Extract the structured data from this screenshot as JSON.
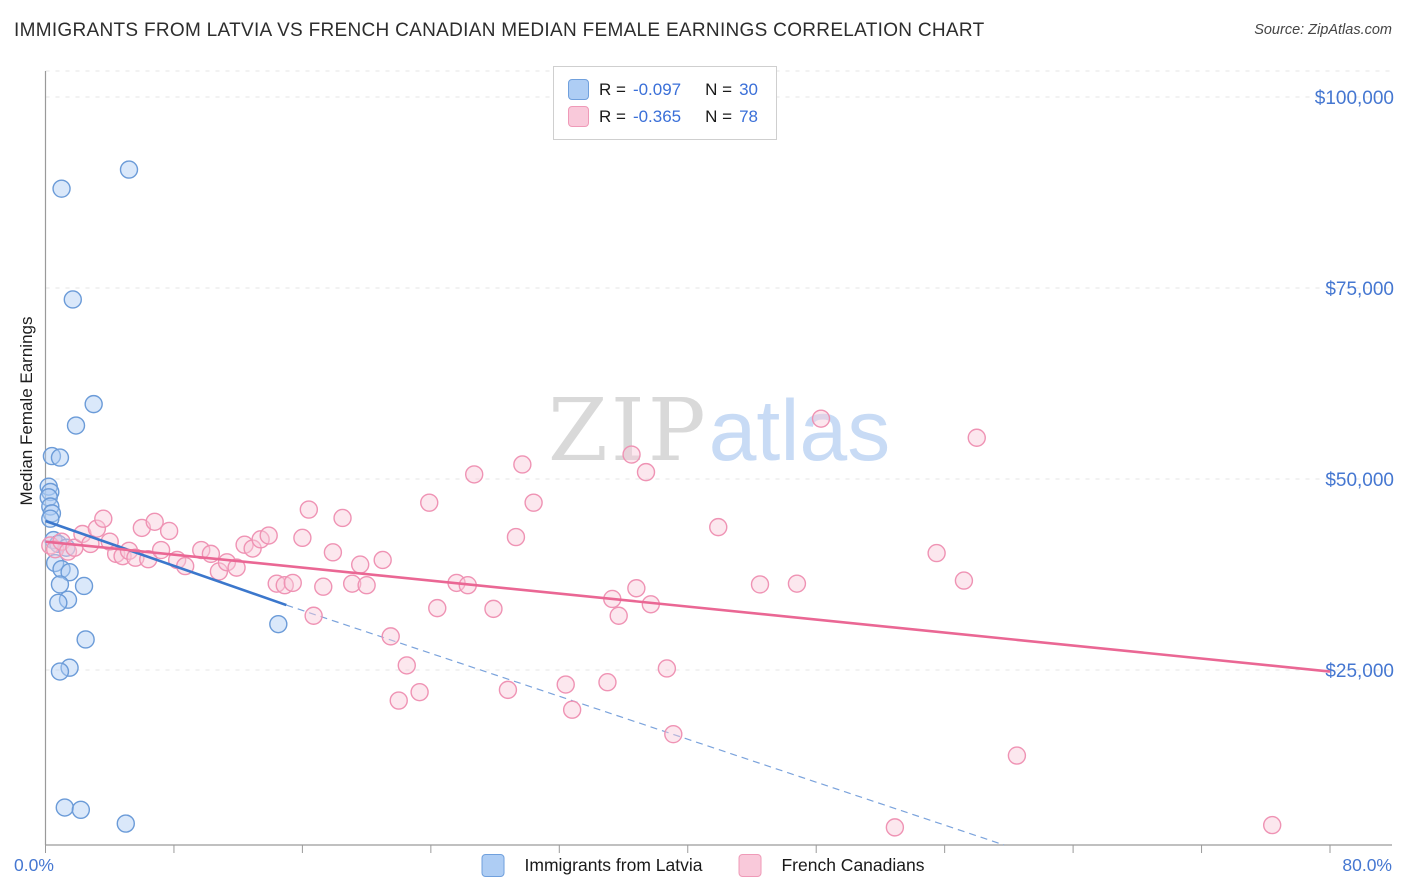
{
  "chart_data": {
    "type": "scatter",
    "title": "IMMIGRANTS FROM LATVIA VS FRENCH CANADIAN MEDIAN FEMALE EARNINGS CORRELATION CHART",
    "source": "Source: ZipAtlas.com",
    "ylabel": "Median Female Earnings",
    "watermark": {
      "zip": "ZIP",
      "atlas": "atlas"
    },
    "x_axis": {
      "min": 0,
      "max": 80,
      "tick_step": 8,
      "left_label": "0.0%",
      "right_label": "80.0%"
    },
    "y_axis": {
      "min": 0,
      "max": 103500,
      "gridlines": [
        25000,
        50000,
        75000,
        100000
      ],
      "ticks": [
        {
          "value": 100000,
          "label": "$100,000"
        },
        {
          "value": 75000,
          "label": "$75,000"
        },
        {
          "value": 50000,
          "label": "$50,000"
        },
        {
          "value": 25000,
          "label": "$25,000"
        }
      ]
    },
    "legend_box": [
      {
        "r_label": "R =",
        "r_value": "-0.097",
        "n_label": "N =",
        "n_value": "30"
      },
      {
        "r_label": "R =",
        "r_value": "-0.365",
        "n_label": "N =",
        "n_value": "78"
      }
    ],
    "colors": {
      "grid": "#e4e4e4",
      "axis": "#9a9a9a",
      "tick_text": "#4577d1",
      "blue_fill": "#aecdf4",
      "blue_stroke": "#6b9bd8",
      "blue_line": "#3b77cc",
      "blue_dash": "#7ba3dc",
      "pink_fill": "#f9c9da",
      "pink_stroke": "#ef93b4",
      "pink_line": "#ea6794"
    },
    "series": [
      {
        "name": "Immigrants from Latvia",
        "r": -0.097,
        "n": 30,
        "points": [
          [
            1.0,
            88000
          ],
          [
            5.2,
            90500
          ],
          [
            1.7,
            73500
          ],
          [
            3.0,
            59800
          ],
          [
            1.9,
            57000
          ],
          [
            0.4,
            53000
          ],
          [
            0.9,
            52800
          ],
          [
            0.2,
            49000
          ],
          [
            0.3,
            48300
          ],
          [
            0.2,
            47600
          ],
          [
            0.3,
            46400
          ],
          [
            0.4,
            45500
          ],
          [
            0.3,
            44800
          ],
          [
            0.5,
            42000
          ],
          [
            0.8,
            41500
          ],
          [
            1.3,
            41000
          ],
          [
            0.6,
            39000
          ],
          [
            1.0,
            38200
          ],
          [
            1.5,
            37800
          ],
          [
            0.9,
            36200
          ],
          [
            2.4,
            36000
          ],
          [
            1.4,
            34200
          ],
          [
            0.8,
            33800
          ],
          [
            2.5,
            29000
          ],
          [
            1.5,
            25300
          ],
          [
            0.9,
            24800
          ],
          [
            14.5,
            31000
          ],
          [
            1.2,
            7000
          ],
          [
            2.2,
            6700
          ],
          [
            5.0,
            4900
          ]
        ],
        "trend_solid": [
          [
            0,
            44500
          ],
          [
            15,
            33500
          ]
        ],
        "trend_dashed": [
          [
            15,
            33500
          ],
          [
            59.7,
            2100
          ]
        ]
      },
      {
        "name": "French Canadians",
        "r": -0.365,
        "n": 78,
        "points": [
          [
            0.3,
            41300
          ],
          [
            0.6,
            40800
          ],
          [
            1.0,
            41800
          ],
          [
            1.4,
            40500
          ],
          [
            1.8,
            41000
          ],
          [
            2.3,
            42800
          ],
          [
            2.8,
            41500
          ],
          [
            3.2,
            43500
          ],
          [
            3.6,
            44800
          ],
          [
            4.0,
            41800
          ],
          [
            4.4,
            40200
          ],
          [
            4.8,
            39900
          ],
          [
            5.2,
            40600
          ],
          [
            5.6,
            39700
          ],
          [
            6.0,
            43600
          ],
          [
            6.4,
            39500
          ],
          [
            6.8,
            44400
          ],
          [
            7.2,
            40700
          ],
          [
            7.7,
            43200
          ],
          [
            8.2,
            39400
          ],
          [
            8.7,
            38600
          ],
          [
            9.7,
            40700
          ],
          [
            10.3,
            40200
          ],
          [
            10.8,
            37900
          ],
          [
            11.3,
            39100
          ],
          [
            11.9,
            38400
          ],
          [
            12.4,
            41400
          ],
          [
            12.9,
            40900
          ],
          [
            13.4,
            42100
          ],
          [
            13.9,
            42600
          ],
          [
            14.4,
            36300
          ],
          [
            14.9,
            36100
          ],
          [
            15.4,
            36400
          ],
          [
            16.0,
            42300
          ],
          [
            16.4,
            46000
          ],
          [
            16.7,
            32100
          ],
          [
            17.3,
            35900
          ],
          [
            17.9,
            40400
          ],
          [
            18.5,
            44900
          ],
          [
            19.1,
            36300
          ],
          [
            19.6,
            38800
          ],
          [
            20.0,
            36100
          ],
          [
            21.0,
            39400
          ],
          [
            21.5,
            29400
          ],
          [
            22.0,
            21000
          ],
          [
            22.5,
            25600
          ],
          [
            23.3,
            22100
          ],
          [
            23.9,
            46900
          ],
          [
            24.4,
            33100
          ],
          [
            25.6,
            36400
          ],
          [
            26.3,
            36100
          ],
          [
            26.7,
            50600
          ],
          [
            27.9,
            33000
          ],
          [
            28.8,
            22400
          ],
          [
            29.3,
            42400
          ],
          [
            29.7,
            51900
          ],
          [
            30.4,
            46900
          ],
          [
            32.4,
            23100
          ],
          [
            32.8,
            19800
          ],
          [
            35.0,
            23400
          ],
          [
            35.3,
            34300
          ],
          [
            35.7,
            32100
          ],
          [
            36.5,
            53200
          ],
          [
            36.8,
            35700
          ],
          [
            37.4,
            50900
          ],
          [
            37.7,
            33600
          ],
          [
            38.7,
            25200
          ],
          [
            39.1,
            16600
          ],
          [
            41.9,
            43700
          ],
          [
            44.5,
            36200
          ],
          [
            46.8,
            36300
          ],
          [
            48.3,
            57900
          ],
          [
            52.9,
            4400
          ],
          [
            55.5,
            40300
          ],
          [
            57.2,
            36700
          ],
          [
            58.0,
            55400
          ],
          [
            60.5,
            13800
          ],
          [
            76.4,
            4700
          ]
        ],
        "trend_solid": [
          [
            0,
            41800
          ],
          [
            80,
            24800
          ]
        ]
      }
    ]
  }
}
